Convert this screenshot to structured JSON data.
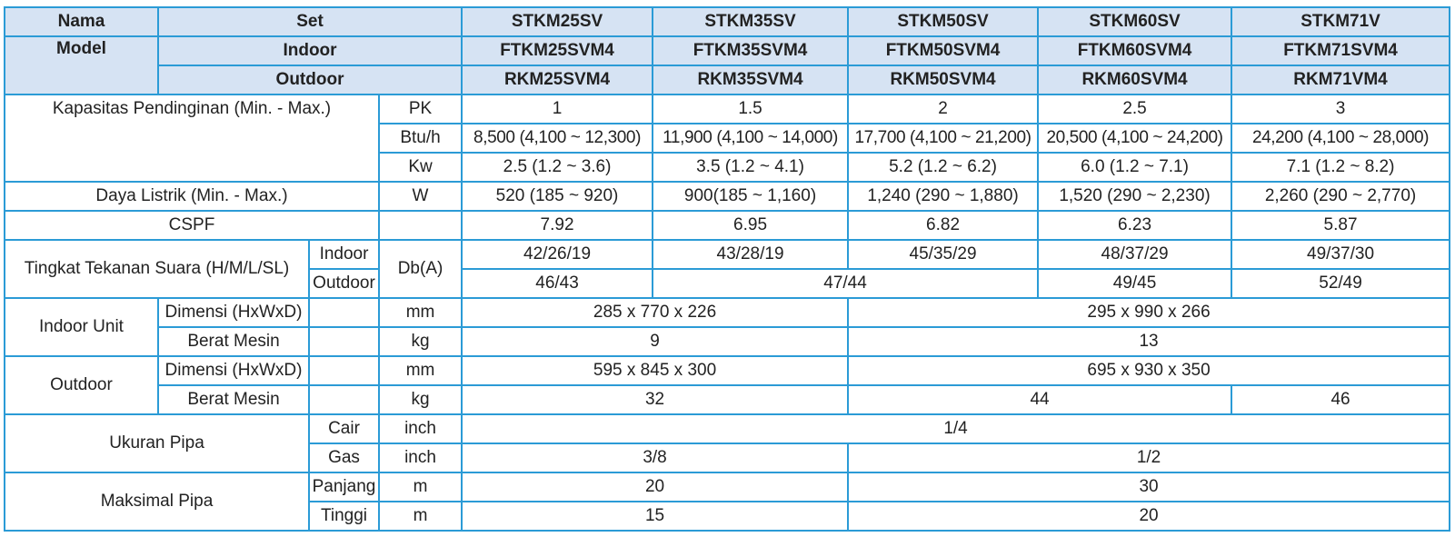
{
  "header": {
    "nama": "Nama",
    "model": "Model",
    "set": "Set",
    "indoor": "Indoor",
    "outdoor": "Outdoor",
    "sets": [
      "STKM25SV",
      "STKM35SV",
      "STKM50SV",
      "STKM60SV",
      "STKM71V"
    ],
    "indoor_models": [
      "FTKM25SVM4",
      "FTKM35SVM4",
      "FTKM50SVM4",
      "FTKM60SVM4",
      "FTKM71SVM4"
    ],
    "outdoor_models": [
      "RKM25SVM4",
      "RKM35SVM4",
      "RKM50SVM4",
      "RKM60SVM4",
      "RKM71VM4"
    ]
  },
  "kapasitas": {
    "label": "Kapasitas Pendinginan (Min. - Max.)",
    "pk_unit": "PK",
    "pk": [
      "1",
      "1.5",
      "2",
      "2.5",
      "3"
    ],
    "btu_unit": "Btu/h",
    "btu": [
      "8,500 (4,100 ~ 12,300)",
      "11,900 (4,100 ~ 14,000)",
      "17,700 (4,100 ~ 21,200)",
      "20,500 (4,100 ~ 24,200)",
      "24,200 (4,100 ~ 28,000)"
    ],
    "kw_unit": "Kw",
    "kw": [
      "2.5 (1.2 ~ 3.6)",
      "3.5 (1.2 ~ 4.1)",
      "5.2 (1.2 ~ 6.2)",
      "6.0 (1.2 ~ 7.1)",
      "7.1 (1.2 ~ 8.2)"
    ]
  },
  "daya": {
    "label": "Daya Listrik (Min. - Max.)",
    "unit": "W",
    "values": [
      "520 (185 ~ 920)",
      "900(185 ~ 1,160)",
      "1,240 (290 ~ 1,880)",
      "1,520 (290 ~ 2,230)",
      "2,260 (290 ~ 2,770)"
    ]
  },
  "cspf": {
    "label": "CSPF",
    "values": [
      "7.92",
      "6.95",
      "6.82",
      "6.23",
      "5.87"
    ]
  },
  "suara": {
    "label": "Tingkat Tekanan Suara (H/M/L/SL)",
    "indoor_label": "Indoor",
    "outdoor_label": "Outdoor",
    "unit": "Db(A)",
    "indoor": [
      "42/26/19",
      "43/28/19",
      "45/35/29",
      "48/37/29",
      "49/37/30"
    ],
    "outdoor_25": "46/43",
    "outdoor_35_50": "47/44",
    "outdoor_60": "49/45",
    "outdoor_71": "52/49"
  },
  "indoor_unit": {
    "label": "Indoor Unit",
    "dim_label": "Dimensi (HxWxD)",
    "dim_unit": "mm",
    "dim_small": "285 x 770 x 226",
    "dim_large": "295 x 990 x 266",
    "weight_label": "Berat Mesin",
    "weight_unit": "kg",
    "weight_small": "9",
    "weight_large": "13"
  },
  "outdoor_unit": {
    "label": "Outdoor",
    "dim_label": "Dimensi (HxWxD)",
    "dim_unit": "mm",
    "dim_small": "595 x 845 x 300",
    "dim_large": "695 x 930 x 350",
    "weight_label": "Berat Mesin",
    "weight_unit": "kg",
    "weight_small": "32",
    "weight_mid": "44",
    "weight_71": "46"
  },
  "pipa": {
    "label": "Ukuran Pipa",
    "cair_label": "Cair",
    "cair_unit": "inch",
    "cair": "1/4",
    "gas_label": "Gas",
    "gas_unit": "inch",
    "gas_small": "3/8",
    "gas_large": "1/2"
  },
  "maks_pipa": {
    "label": "Maksimal Pipa",
    "panjang_label": "Panjang",
    "panjang_unit": "m",
    "panjang_small": "20",
    "panjang_large": "30",
    "tinggi_label": "Tinggi",
    "tinggi_unit": "m",
    "tinggi_small": "15",
    "tinggi_large": "20"
  }
}
